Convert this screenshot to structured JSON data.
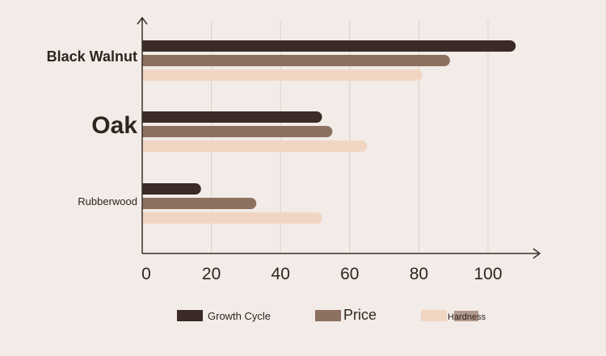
{
  "chart_data": {
    "type": "bar",
    "orientation": "horizontal",
    "categories": [
      "Black Walnut",
      "Oak",
      "Rubberwood"
    ],
    "series": [
      {
        "name": "Growth Cycle",
        "values": [
          108,
          52,
          17
        ],
        "color": "#3a2b27"
      },
      {
        "name": "Price",
        "values": [
          89,
          55,
          33
        ],
        "color": "#8c7060"
      },
      {
        "name": "Hardness",
        "values": [
          81,
          65,
          52
        ],
        "color": "#f0d6c2"
      }
    ],
    "xticks": [
      "0",
      "20",
      "40",
      "60",
      "80",
      "100"
    ],
    "xlim": [
      0,
      115
    ],
    "grid": true,
    "legend_position": "bottom"
  },
  "colors": {
    "background": "#f2ebe7",
    "axis": "#3a2f2c",
    "grid": "#d9d0cb",
    "text": "#2e2420"
  }
}
